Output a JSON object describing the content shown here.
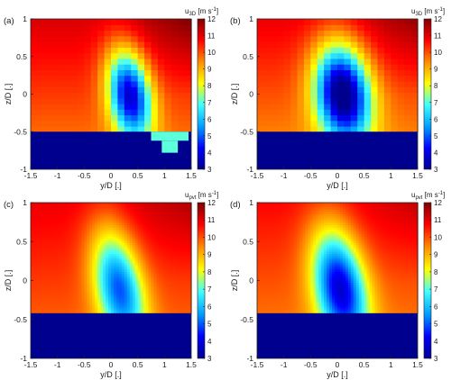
{
  "colormap": {
    "stops": [
      "#00008f",
      "#0000ff",
      "#00a0ff",
      "#3fffff",
      "#ffff00",
      "#ff8c00",
      "#ff0000",
      "#800000"
    ]
  },
  "chart_data": [
    {
      "type": "heatmap",
      "panel_label": "(a)",
      "xlabel": "y/D [.]",
      "ylabel": "z/D [.]",
      "xlim": [
        -1.5,
        1.5
      ],
      "ylim": [
        -1,
        1
      ],
      "xticks": [
        "-1.5",
        "-1",
        "-0.5",
        "0",
        "0.5",
        "1",
        "1.5"
      ],
      "yticks": [
        "-1",
        "-0.5",
        "0",
        "0.5",
        "1"
      ],
      "colorbar": {
        "label": "u",
        "label_sub": "3D",
        "label_unit": "[m s",
        "label_exp": "-1",
        "label_close": "]",
        "range": [
          3,
          12
        ],
        "ticks": [
          "3",
          "4",
          "5",
          "6",
          "7",
          "8",
          "9",
          "10",
          "11",
          "12"
        ]
      },
      "field": "measured",
      "wake_center": [
        0.35,
        0.0
      ],
      "wake_sigma": [
        0.28,
        0.42
      ],
      "wake_deficit": 6.5,
      "wake_tilt": -0.35,
      "freestream": 10.2,
      "ground_z": -0.5,
      "ground_value": 3,
      "extra_blocks": [
        {
          "y0": 0.75,
          "y1": 1.45,
          "z0": -0.62,
          "z1": -0.5
        },
        {
          "y0": 0.95,
          "y1": 1.25,
          "z0": -0.78,
          "z1": -0.62
        }
      ]
    },
    {
      "type": "heatmap",
      "panel_label": "(b)",
      "xlabel": "y/D [.]",
      "ylabel": "z/D [.]",
      "xlim": [
        -1.5,
        1.5
      ],
      "ylim": [
        -1,
        1
      ],
      "xticks": [
        "-1.5",
        "-1",
        "-0.5",
        "0",
        "0.5",
        "1",
        "1.5"
      ],
      "yticks": [
        "-1",
        "-0.5",
        "0",
        "0.5",
        "1"
      ],
      "colorbar": {
        "label": "u",
        "label_sub": "3D",
        "label_unit": "[m s",
        "label_exp": "-1",
        "label_close": "]",
        "range": [
          3,
          12
        ],
        "ticks": [
          "3",
          "4",
          "5",
          "6",
          "7",
          "8",
          "9",
          "10",
          "11",
          "12"
        ]
      },
      "field": "measured",
      "wake_center": [
        0.1,
        0.02
      ],
      "wake_sigma": [
        0.36,
        0.45
      ],
      "wake_deficit": 7.6,
      "wake_tilt": -0.25,
      "freestream": 10.0,
      "ground_z": -0.5,
      "ground_value": 3,
      "extra_blocks": []
    },
    {
      "type": "heatmap",
      "panel_label": "(c)",
      "xlabel": "y/D [.]",
      "ylabel": "z/D [.]",
      "xlim": [
        -1.5,
        1.5
      ],
      "ylim": [
        -1,
        1
      ],
      "xticks": [
        "-1.5",
        "-1",
        "-0.5",
        "0",
        "0.5",
        "1",
        "1.5"
      ],
      "yticks": [
        "-1",
        "-0.5",
        "0",
        "0.5",
        "1"
      ],
      "colorbar": {
        "label": "u",
        "label_sub": "pvt",
        "label_unit": "[m s",
        "label_exp": "-1",
        "label_close": "]",
        "range": [
          3,
          12
        ],
        "ticks": [
          "3",
          "4",
          "5",
          "6",
          "7",
          "8",
          "9",
          "10",
          "11",
          "12"
        ]
      },
      "field": "simulated",
      "wake_center": [
        0.15,
        -0.08
      ],
      "wake_sigma": [
        0.32,
        0.52
      ],
      "wake_deficit": 5.2,
      "wake_tilt": -0.5,
      "freestream": 10.2,
      "ground_z": -0.42,
      "ground_value": 3,
      "extra_blocks": []
    },
    {
      "type": "heatmap",
      "panel_label": "(d)",
      "xlabel": "y/D [.]",
      "ylabel": "z/D [.]",
      "xlim": [
        -1.5,
        1.5
      ],
      "ylim": [
        -1,
        1
      ],
      "xticks": [
        "-1.5",
        "-1",
        "-0.5",
        "0",
        "0.5",
        "1",
        "1.5"
      ],
      "yticks": [
        "-1",
        "-0.5",
        "0",
        "0.5",
        "1"
      ],
      "colorbar": {
        "label": "u",
        "label_sub": "pvt",
        "label_unit": "[m s",
        "label_exp": "-1",
        "label_close": "]",
        "range": [
          3,
          12
        ],
        "ticks": [
          "3",
          "4",
          "5",
          "6",
          "7",
          "8",
          "9",
          "10",
          "11",
          "12"
        ]
      },
      "field": "simulated",
      "wake_center": [
        0.05,
        -0.08
      ],
      "wake_sigma": [
        0.34,
        0.52
      ],
      "wake_deficit": 6.2,
      "wake_tilt": -0.45,
      "freestream": 10.0,
      "ground_z": -0.42,
      "ground_value": 3,
      "extra_blocks": []
    }
  ]
}
